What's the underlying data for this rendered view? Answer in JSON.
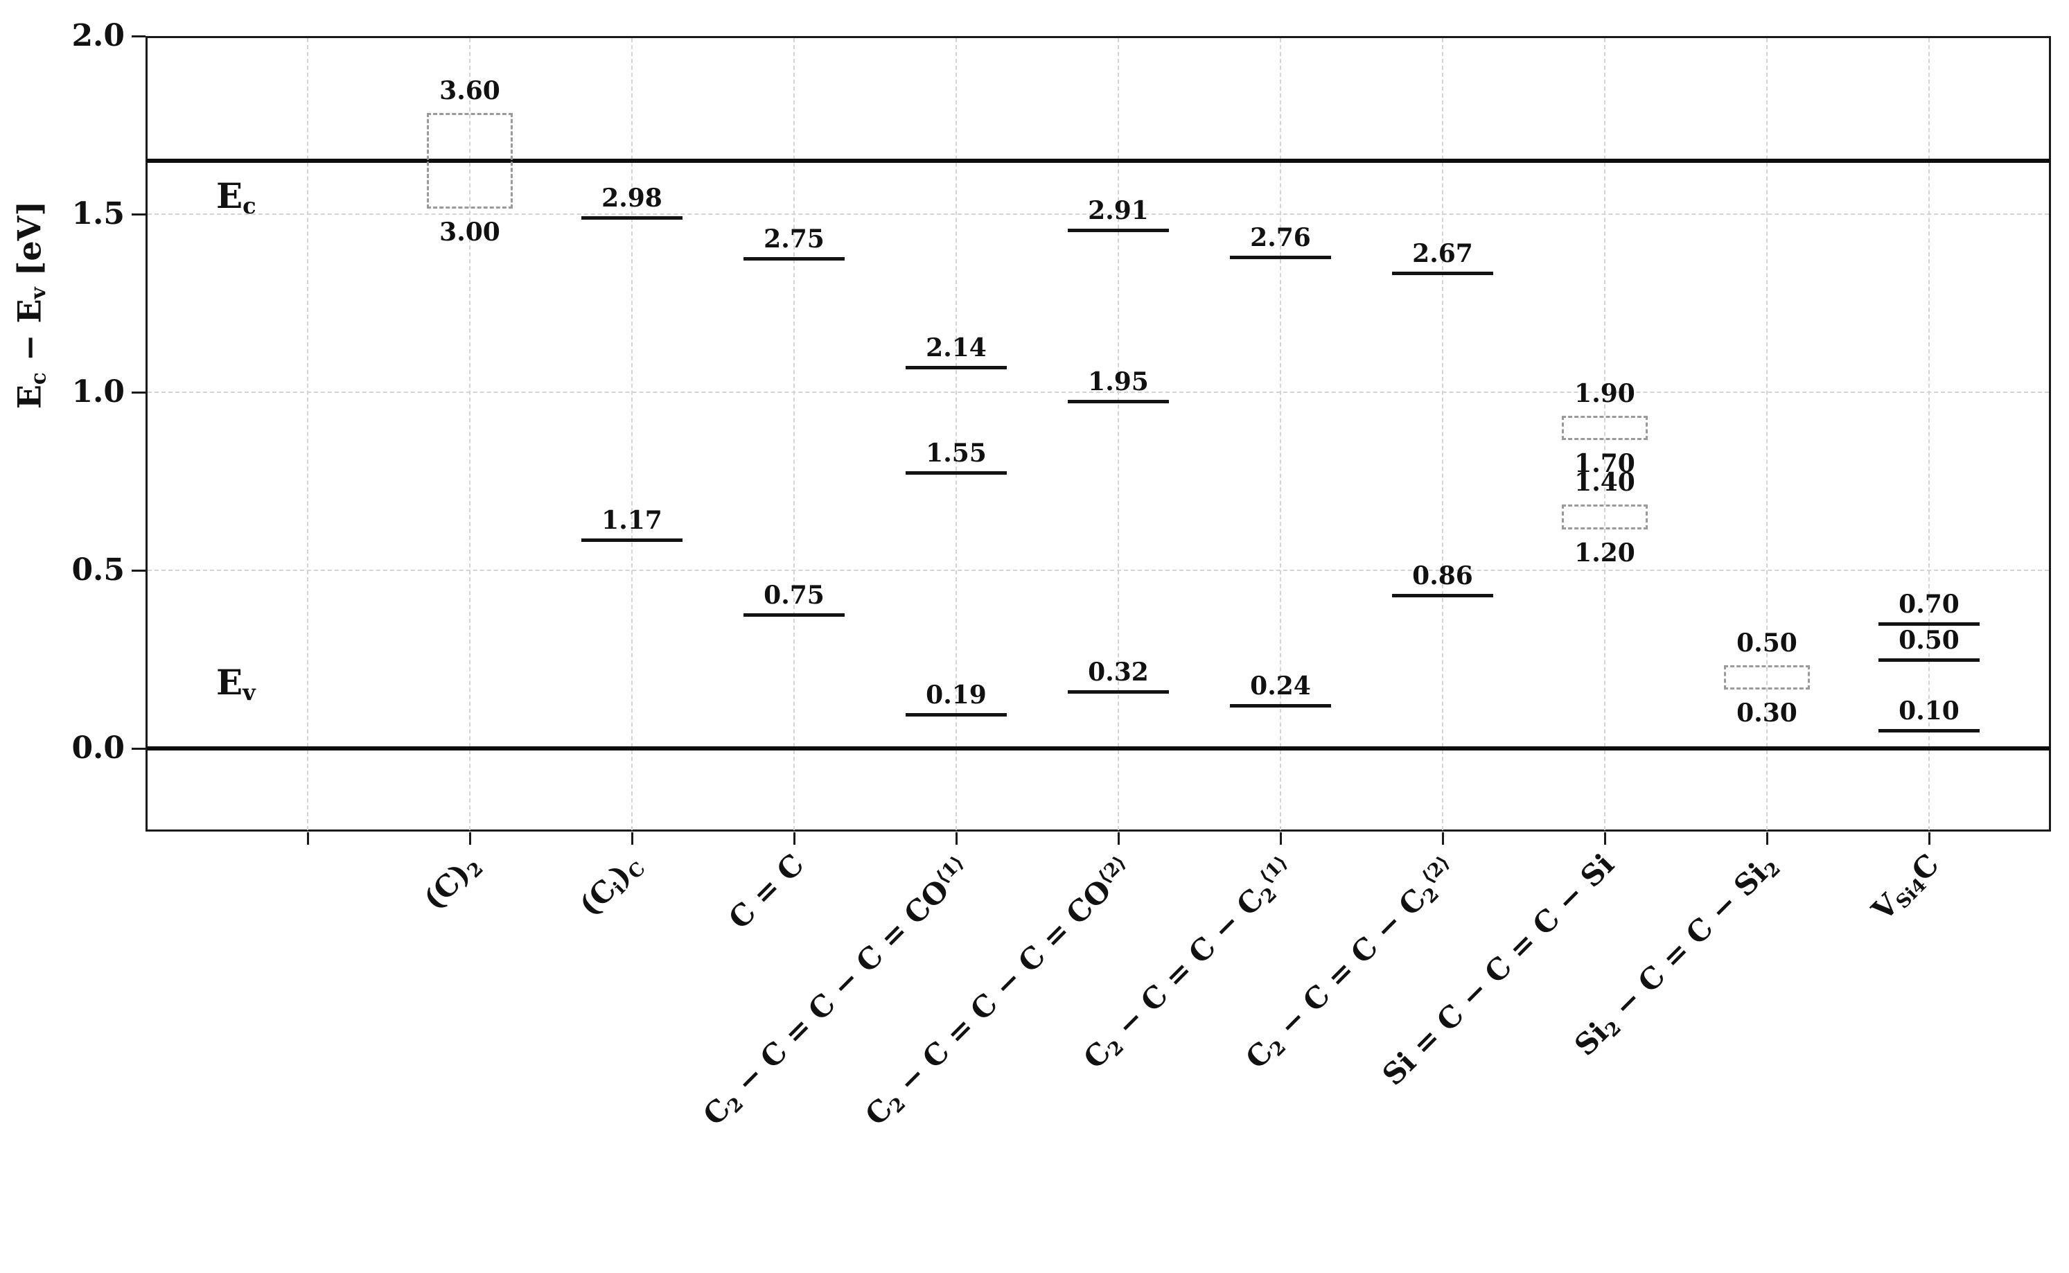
{
  "figure": {
    "background": "#ffffff",
    "frame_color": "#1a1a1a",
    "grid_color": "#d4d4d4",
    "level_color": "#131313",
    "box_border_color": "#9a9a9a",
    "text_color": "#111111"
  },
  "chart_data": {
    "type": "energy-level-diagram",
    "title": "",
    "ylabel_tokens": [
      [
        "n",
        "E"
      ],
      [
        "sub",
        "c"
      ],
      [
        "n",
        " − E"
      ],
      [
        "sub",
        "v"
      ],
      [
        "n",
        " [eV]"
      ]
    ],
    "ylim": [
      -0.23,
      2.0
    ],
    "grid": true,
    "yticks": [
      {
        "y": 0.0,
        "label": "0.0"
      },
      {
        "y": 0.5,
        "label": "0.5"
      },
      {
        "y": 1.0,
        "label": "1.0"
      },
      {
        "y": 1.5,
        "label": "1.5"
      },
      {
        "y": 2.0,
        "label": "2.0"
      }
    ],
    "hgrid_at": [
      0.5,
      1.0,
      1.5
    ],
    "band_edges": {
      "conduction": {
        "label_tokens": [
          [
            "n",
            "E"
          ],
          [
            "sub",
            "c"
          ]
        ],
        "y": 1.65
      },
      "valence": {
        "label_tokens": [
          [
            "n",
            "E"
          ],
          [
            "sub",
            "v"
          ]
        ],
        "y": 0.0
      }
    },
    "columns": [
      {
        "name": "(C)2",
        "label_tokens": [
          [
            "n",
            "(C)"
          ],
          [
            "sub",
            "2"
          ]
        ],
        "levels": [],
        "boxes": [
          {
            "top": "3.60",
            "bottom": "3.00",
            "y_top": 1.8,
            "y_bottom": 1.5
          }
        ]
      },
      {
        "name": "(Ci)C",
        "label_tokens": [
          [
            "n",
            "(C"
          ],
          [
            "sub",
            "i"
          ],
          [
            "n",
            ")"
          ],
          [
            "sub",
            "C"
          ]
        ],
        "levels": [
          {
            "value": "2.98",
            "y": 1.49
          },
          {
            "value": "1.17",
            "y": 0.585
          }
        ],
        "boxes": []
      },
      {
        "name": "C=C",
        "label_tokens": [
          [
            "n",
            "C = C"
          ]
        ],
        "levels": [
          {
            "value": "2.75",
            "y": 1.375
          },
          {
            "value": "0.75",
            "y": 0.375
          }
        ],
        "boxes": []
      },
      {
        "name": "C2-C=C-C=CO<1>",
        "label_tokens": [
          [
            "n",
            "C"
          ],
          [
            "sub",
            "2"
          ],
          [
            "n",
            " − C = C − C = CO"
          ],
          [
            "sup",
            "⟨1⟩"
          ]
        ],
        "levels": [
          {
            "value": "2.14",
            "y": 1.07
          },
          {
            "value": "1.55",
            "y": 0.775
          },
          {
            "value": "0.19",
            "y": 0.095
          }
        ],
        "boxes": []
      },
      {
        "name": "C2-C=C-C=CO<2>",
        "label_tokens": [
          [
            "n",
            "C"
          ],
          [
            "sub",
            "2"
          ],
          [
            "n",
            " − C = C − C = CO"
          ],
          [
            "sup",
            "⟨2⟩"
          ]
        ],
        "levels": [
          {
            "value": "2.91",
            "y": 1.455
          },
          {
            "value": "1.95",
            "y": 0.975
          },
          {
            "value": "0.32",
            "y": 0.16
          }
        ],
        "boxes": []
      },
      {
        "name": "C2-C=C-C2<1>",
        "label_tokens": [
          [
            "n",
            "C"
          ],
          [
            "sub",
            "2"
          ],
          [
            "n",
            " − C = C − C"
          ],
          [
            "sub",
            "2"
          ],
          [
            "sup",
            "⟨1⟩"
          ]
        ],
        "levels": [
          {
            "value": "2.76",
            "y": 1.38
          },
          {
            "value": "0.24",
            "y": 0.12
          }
        ],
        "boxes": []
      },
      {
        "name": "C2-C=C-C2<2>",
        "label_tokens": [
          [
            "n",
            "C"
          ],
          [
            "sub",
            "2"
          ],
          [
            "n",
            " − C = C − C"
          ],
          [
            "sub",
            "2"
          ],
          [
            "sup",
            "⟨2⟩"
          ]
        ],
        "levels": [
          {
            "value": "2.67",
            "y": 1.335
          },
          {
            "value": "0.86",
            "y": 0.43
          }
        ],
        "boxes": []
      },
      {
        "name": "Si=C-C=C-Si",
        "label_tokens": [
          [
            "n",
            "Si = C − C = C − Si"
          ]
        ],
        "levels": [],
        "boxes": [
          {
            "top": "1.90",
            "bottom": "1.70",
            "y_top": 0.95,
            "y_bottom": 0.85
          },
          {
            "top": "1.40",
            "bottom": "1.20",
            "y_top": 0.7,
            "y_bottom": 0.6
          }
        ]
      },
      {
        "name": "Si2-C=C-Si2",
        "label_tokens": [
          [
            "n",
            "Si"
          ],
          [
            "sub",
            "2"
          ],
          [
            "n",
            " − C = C − Si"
          ],
          [
            "sub",
            "2"
          ]
        ],
        "levels": [],
        "boxes": [
          {
            "top": "0.50",
            "bottom": "0.30",
            "y_top": 0.25,
            "y_bottom": 0.15
          }
        ]
      },
      {
        "name": "VSi4C",
        "label_tokens": [
          [
            "n",
            "V"
          ],
          [
            "sub",
            "Si4"
          ],
          [
            "n",
            "C"
          ]
        ],
        "levels": [
          {
            "value": "0.70",
            "y": 0.35
          },
          {
            "value": "0.50",
            "y": 0.25
          },
          {
            "value": "0.10",
            "y": 0.05
          }
        ],
        "boxes": []
      }
    ]
  }
}
